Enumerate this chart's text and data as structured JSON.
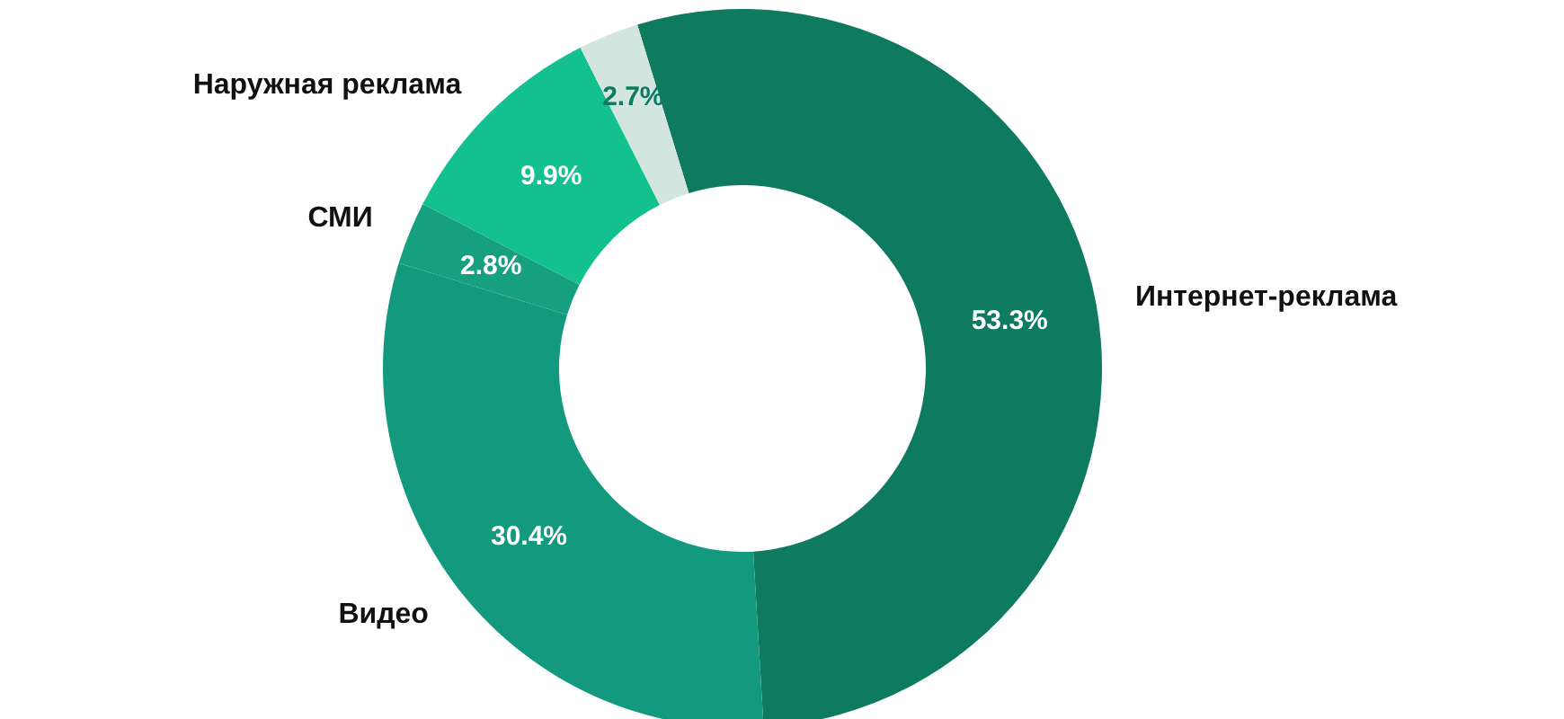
{
  "chart_data": {
    "type": "donut",
    "categories": [
      "Интернет-реклама",
      "Видео",
      "СМИ",
      "Наружная реклама",
      null
    ],
    "values": [
      53.3,
      30.4,
      2.8,
      9.9,
      2.7
    ],
    "value_labels": [
      "53.3%",
      "30.4%",
      "2.8%",
      "9.9%",
      "2.7%"
    ],
    "colors": [
      "#0e7a60",
      "#139a7e",
      "#16a080",
      "#12c18f",
      "#d3e5df"
    ]
  }
}
